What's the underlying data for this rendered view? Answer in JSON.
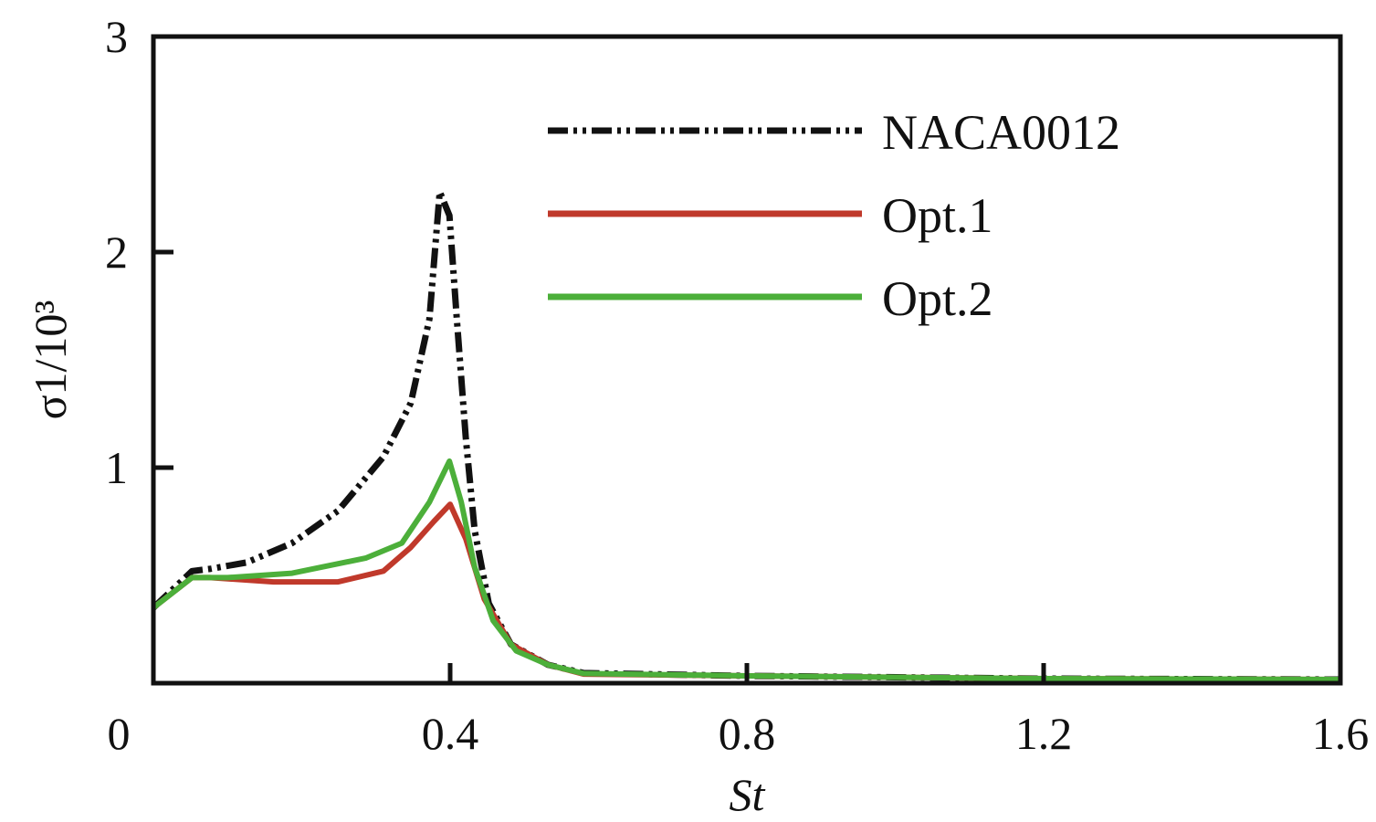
{
  "chart_data": {
    "type": "line",
    "title": "",
    "xlabel": "St",
    "ylabel": "σ1/10³",
    "ylabel_parts": {
      "main": "σ",
      "sub": "1",
      "rest": "/10",
      "sup": "3"
    },
    "xlim": [
      0,
      1.6
    ],
    "ylim": [
      0,
      3
    ],
    "xticks": [
      0,
      0.4,
      0.8,
      1.2,
      1.6
    ],
    "xtick_labels": [
      "0",
      "0.4",
      "0.8",
      "1.2",
      "1.6"
    ],
    "yticks": [
      1,
      2,
      3
    ],
    "ytick_labels": [
      "1",
      "2",
      "3"
    ],
    "grid": false,
    "legend_position": "top-right",
    "series": [
      {
        "name": "NACA0012",
        "color": "#111111",
        "style": "dash-dot-dot",
        "x": [
          0,
          0.052,
          0.076,
          0.126,
          0.187,
          0.249,
          0.31,
          0.347,
          0.372,
          0.386,
          0.399,
          0.409,
          0.421,
          0.433,
          0.452,
          0.482,
          0.532,
          0.58,
          0.8,
          1.2,
          1.6
        ],
        "y": [
          0.35,
          0.52,
          0.53,
          0.56,
          0.65,
          0.8,
          1.05,
          1.3,
          1.69,
          2.28,
          2.17,
          1.69,
          1.14,
          0.71,
          0.37,
          0.18,
          0.085,
          0.047,
          0.034,
          0.021,
          0.017
        ]
      },
      {
        "name": "Opt.1",
        "color": "#c0392b",
        "style": "solid",
        "x": [
          0,
          0.052,
          0.076,
          0.162,
          0.249,
          0.31,
          0.347,
          0.378,
          0.4,
          0.421,
          0.446,
          0.482,
          0.532,
          0.58,
          0.8,
          1.2,
          1.6
        ],
        "y": [
          0.35,
          0.49,
          0.49,
          0.47,
          0.47,
          0.52,
          0.63,
          0.75,
          0.83,
          0.67,
          0.39,
          0.18,
          0.085,
          0.042,
          0.034,
          0.021,
          0.017
        ]
      },
      {
        "name": "Opt.2",
        "color": "#4caf3a",
        "style": "solid",
        "x": [
          0,
          0.052,
          0.1,
          0.187,
          0.286,
          0.335,
          0.372,
          0.399,
          0.415,
          0.433,
          0.458,
          0.489,
          0.532,
          0.58,
          0.8,
          1.2,
          1.6
        ],
        "y": [
          0.35,
          0.49,
          0.49,
          0.51,
          0.58,
          0.65,
          0.84,
          1.03,
          0.84,
          0.54,
          0.29,
          0.15,
          0.085,
          0.045,
          0.034,
          0.021,
          0.017
        ]
      }
    ]
  }
}
